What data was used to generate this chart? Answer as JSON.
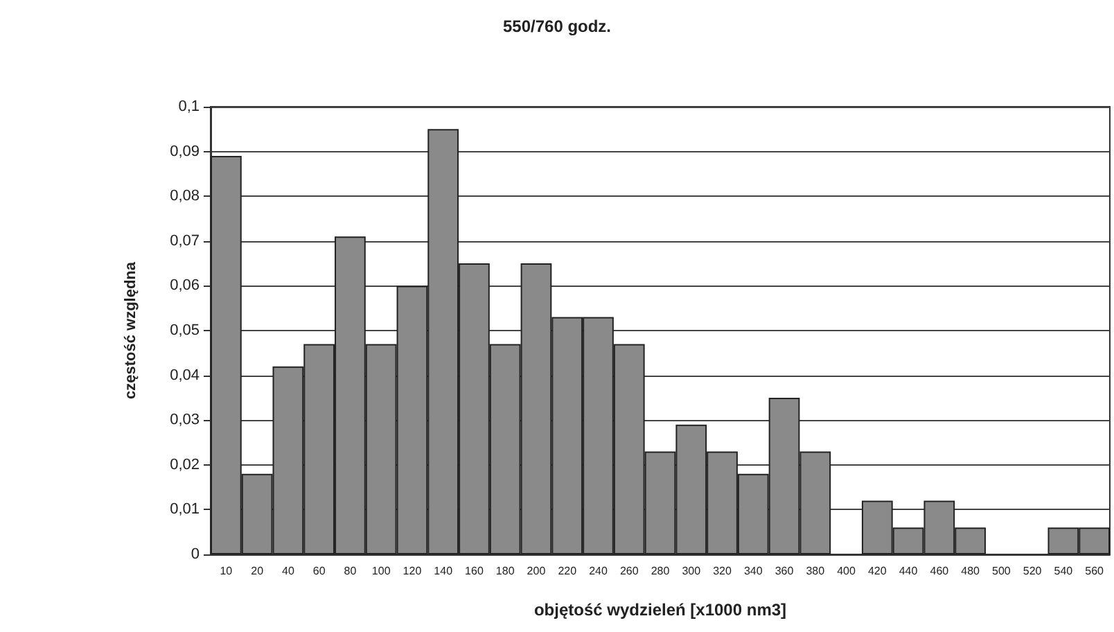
{
  "chart_data": {
    "type": "bar",
    "title": "550/760 godz.",
    "xlabel": "objętość wydzieleń [x1000 nm3]",
    "ylabel": "częstość względna",
    "categories": [
      "10",
      "20",
      "40",
      "60",
      "80",
      "100",
      "120",
      "140",
      "160",
      "180",
      "200",
      "220",
      "240",
      "260",
      "280",
      "300",
      "320",
      "340",
      "360",
      "380",
      "400",
      "420",
      "440",
      "460",
      "480",
      "500",
      "520",
      "540",
      "560"
    ],
    "values": [
      0.089,
      0.018,
      0.042,
      0.047,
      0.071,
      0.047,
      0.06,
      0.095,
      0.065,
      0.047,
      0.065,
      0.053,
      0.053,
      0.047,
      0.023,
      0.029,
      0.023,
      0.018,
      0.035,
      0.023,
      0,
      0.012,
      0.006,
      0.012,
      0.006,
      0,
      0,
      0.006,
      0.006
    ],
    "color": "#8a8a8a",
    "ylim": [
      0,
      0.1
    ],
    "yticks": [
      {
        "value": 0,
        "label": "0"
      },
      {
        "value": 0.01,
        "label": "0,01"
      },
      {
        "value": 0.02,
        "label": "0,02"
      },
      {
        "value": 0.03,
        "label": "0,03"
      },
      {
        "value": 0.04,
        "label": "0,04"
      },
      {
        "value": 0.05,
        "label": "0,05"
      },
      {
        "value": 0.06,
        "label": "0,06"
      },
      {
        "value": 0.07,
        "label": "0,07"
      },
      {
        "value": 0.08,
        "label": "0,08"
      },
      {
        "value": 0.09,
        "label": "0,09"
      },
      {
        "value": 0.1,
        "label": "0,1"
      }
    ],
    "grid": "y"
  }
}
